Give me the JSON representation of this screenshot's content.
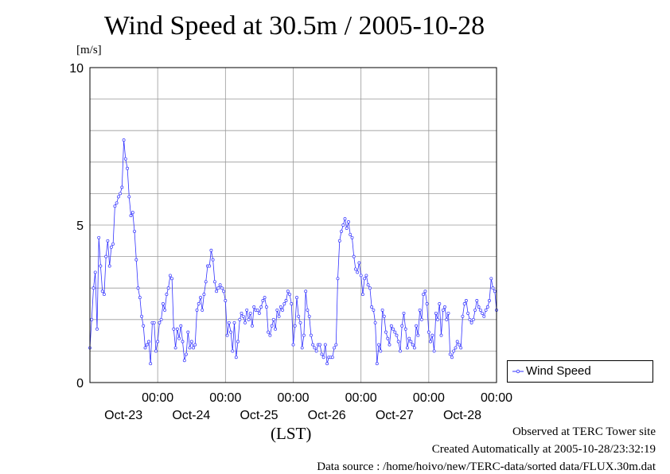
{
  "chart_data": {
    "type": "line",
    "title": "Wind Speed at 30.5m / 2005-10-28",
    "ylabel": "[m/s]",
    "xlabel": "(LST)",
    "ylim": [
      0,
      10
    ],
    "yticks": [
      "0",
      "5",
      "10"
    ],
    "xlim_hours": [
      0,
      144
    ],
    "x_tick_labels": [
      {
        "time": "00:00",
        "date": "Oct-23"
      },
      {
        "time": "00:00",
        "date": "Oct-24"
      },
      {
        "time": "00:00",
        "date": "Oct-25"
      },
      {
        "time": "00:00",
        "date": "Oct-26"
      },
      {
        "time": "00:00",
        "date": "Oct-27"
      },
      {
        "time": "00:00",
        "date": "Oct-28"
      }
    ],
    "grid": true,
    "legend_position": "right",
    "series": [
      {
        "name": "Wind Speed",
        "color": "#3333ff",
        "values": [
          1.1,
          2.0,
          3.0,
          3.5,
          1.7,
          4.6,
          3.7,
          2.9,
          2.8,
          4.0,
          4.5,
          3.7,
          4.3,
          4.4,
          5.6,
          5.7,
          5.9,
          6.0,
          6.2,
          7.7,
          7.1,
          6.8,
          5.9,
          5.3,
          5.4,
          4.8,
          3.9,
          3.0,
          2.7,
          2.1,
          1.8,
          1.1,
          1.2,
          1.3,
          0.6,
          1.9,
          1.9,
          1.0,
          1.3,
          1.9,
          2.0,
          2.5,
          2.3,
          2.8,
          3.0,
          3.4,
          3.3,
          1.7,
          1.1,
          1.7,
          1.4,
          1.8,
          1.3,
          0.7,
          0.9,
          1.6,
          1.1,
          1.3,
          1.1,
          1.2,
          2.3,
          2.5,
          2.7,
          2.3,
          2.8,
          3.2,
          3.7,
          3.7,
          4.2,
          3.9,
          3.2,
          2.9,
          3.0,
          3.1,
          3.0,
          2.9,
          2.6,
          1.5,
          1.9,
          1.6,
          1.0,
          1.9,
          0.8,
          1.3,
          2.0,
          2.2,
          2.1,
          1.9,
          2.3,
          2.0,
          2.2,
          1.8,
          2.4,
          2.3,
          2.3,
          2.2,
          2.4,
          2.6,
          2.7,
          2.4,
          1.6,
          1.5,
          1.8,
          2.0,
          1.7,
          2.3,
          2.1,
          2.4,
          2.3,
          2.5,
          2.6,
          2.9,
          2.8,
          2.5,
          1.2,
          1.8,
          2.7,
          2.1,
          1.9,
          1.1,
          1.5,
          2.9,
          2.3,
          2.1,
          1.5,
          1.2,
          1.1,
          1.0,
          1.2,
          1.2,
          0.9,
          0.8,
          1.2,
          0.6,
          0.8,
          0.8,
          0.8,
          1.1,
          1.2,
          3.3,
          4.5,
          4.8,
          5.0,
          5.2,
          4.9,
          5.1,
          4.7,
          4.6,
          4.0,
          3.6,
          3.5,
          3.8,
          3.4,
          2.8,
          3.3,
          3.4,
          3.1,
          3.0,
          2.4,
          2.3,
          1.9,
          0.6,
          1.2,
          1.0,
          2.3,
          2.1,
          1.6,
          1.4,
          1.2,
          1.8,
          1.7,
          1.6,
          1.5,
          1.3,
          1.0,
          1.8,
          2.2,
          1.7,
          1.1,
          1.4,
          1.3,
          1.2,
          1.1,
          1.8,
          1.5,
          2.3,
          2.0,
          2.8,
          2.9,
          2.5,
          1.6,
          1.3,
          1.5,
          1.0,
          2.2,
          2.0,
          2.5,
          1.5,
          2.3,
          2.4,
          2.0,
          2.2,
          0.9,
          0.8,
          1.0,
          1.1,
          1.3,
          1.2,
          1.1,
          2.1,
          2.5,
          2.6,
          2.2,
          2.0,
          1.9,
          2.0,
          2.3,
          2.6,
          2.4,
          2.3,
          2.2,
          2.1,
          2.3,
          2.4,
          2.6,
          3.3,
          3.0,
          2.9,
          2.3
        ]
      }
    ]
  },
  "footer": {
    "line1": "Observed at TERC Tower site",
    "line2": "Created Automatically at 2005-10-28/23:32:19",
    "line3": "Data source : /home/hoivo/new/TERC-data/sorted  data/FLUX.30m.dat"
  }
}
